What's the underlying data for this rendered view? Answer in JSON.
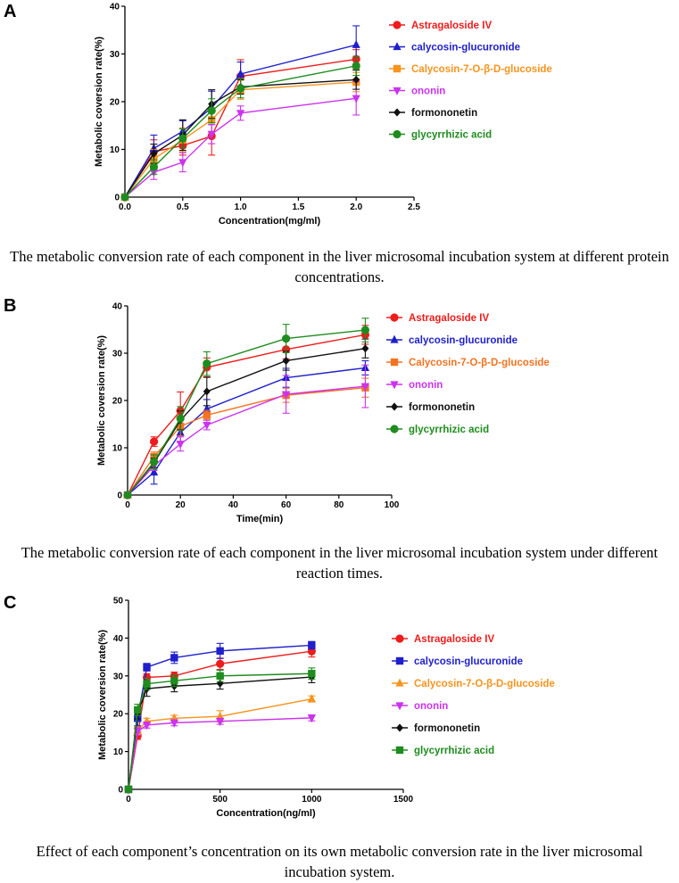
{
  "colors": {
    "red": "#ee1c1c",
    "blue": "#1f1fcc",
    "orange": "#f7941d",
    "magenta": "#cc33ee",
    "black": "#111111",
    "green": "#1e8c1e",
    "orange_b": "#f47321",
    "blue_c": "#1f1fcc"
  },
  "panels": [
    {
      "label": "A",
      "caption": "The metabolic conversion rate of each component in the liver microsomal incubation system at different protein concentrations.",
      "chart_data": {
        "type": "line",
        "title": "",
        "xlabel": "Concentration(mg/ml)",
        "ylabel": "Metabolic coversion rate(%)",
        "xlim": [
          0,
          2.5
        ],
        "ylim": [
          0,
          40
        ],
        "xticks": [
          0,
          0.5,
          1,
          1.5,
          2,
          2.5
        ],
        "xtick_labels": [
          "0.0",
          "0.5",
          "1.0",
          "1.5",
          "2.0",
          "2.5"
        ],
        "yticks": [
          0,
          10,
          20,
          30,
          40
        ],
        "ytick_labels": [
          "0",
          "10",
          "20",
          "30",
          "40"
        ],
        "x": [
          0,
          0.25,
          0.5,
          0.75,
          1,
          2
        ],
        "legend_position": "right",
        "series": [
          {
            "name": "Astragaloside IV",
            "marker": "circle",
            "color": "red",
            "values": [
              0,
              9.5,
              10.8,
              12.8,
              25.3,
              28.9
            ],
            "errors": [
              0,
              2.5,
              2.0,
              4.0,
              3.5,
              2.0
            ]
          },
          {
            "name": "calycosin-glucuronide",
            "marker": "triangle-up",
            "color": "blue",
            "values": [
              0,
              10.2,
              13.8,
              18.7,
              25.8,
              31.9
            ],
            "errors": [
              0,
              2.8,
              2.2,
              3.5,
              2.5,
              4.0
            ]
          },
          {
            "name": "Calycosin-7-O-β-D-glucoside",
            "marker": "square",
            "color": "orange",
            "values": [
              0,
              8.0,
              12.0,
              16.2,
              22.5,
              24.1
            ],
            "errors": [
              0,
              2.0,
              2.5,
              2.5,
              2.0,
              2.0
            ]
          },
          {
            "name": "ononin",
            "marker": "triangle-down",
            "color": "magenta",
            "values": [
              0,
              5.2,
              7.3,
              13.2,
              17.6,
              20.7
            ],
            "errors": [
              0,
              1.5,
              2.0,
              2.0,
              1.5,
              3.5
            ]
          },
          {
            "name": "formononetin",
            "marker": "diamond",
            "color": "black",
            "values": [
              0,
              9.1,
              13.0,
              19.5,
              23.1,
              24.6
            ],
            "errors": [
              0,
              2.0,
              3.2,
              3.0,
              1.5,
              2.0
            ]
          },
          {
            "name": "glycyrrhizic acid",
            "marker": "circle",
            "color": "green",
            "values": [
              0,
              6.3,
              12.3,
              18.1,
              22.8,
              27.5
            ],
            "errors": [
              0,
              1.5,
              2.0,
              2.5,
              2.0,
              2.0
            ]
          }
        ]
      }
    },
    {
      "label": "B",
      "caption": "The metabolic conversion rate of each component in the liver microsomal incubation system under different reaction times.",
      "chart_data": {
        "type": "line",
        "title": "",
        "xlabel": "Time(min)",
        "ylabel": "Metabolic coversion rate(%)",
        "xlim": [
          0,
          100
        ],
        "ylim": [
          0,
          40
        ],
        "xticks": [
          0,
          20,
          40,
          60,
          80,
          100
        ],
        "xtick_labels": [
          "0",
          "20",
          "40",
          "60",
          "80",
          "100"
        ],
        "yticks": [
          0,
          10,
          20,
          30,
          40
        ],
        "ytick_labels": [
          "0",
          "10",
          "20",
          "30",
          "40"
        ],
        "x": [
          0,
          10,
          20,
          30,
          60,
          90
        ],
        "legend_position": "right",
        "series": [
          {
            "name": "Astragaloside IV",
            "marker": "circle",
            "color": "red",
            "values": [
              0,
              11.3,
              17.8,
              27.0,
              30.8,
              33.9
            ],
            "errors": [
              0,
              1.0,
              4.0,
              2.0,
              2.0,
              2.0
            ]
          },
          {
            "name": "calycosin-glucuronide",
            "marker": "triangle-up",
            "color": "blue",
            "values": [
              0,
              4.8,
              13.2,
              18.2,
              24.8,
              26.9
            ],
            "errors": [
              0,
              2.5,
              2.0,
              2.0,
              2.0,
              1.5
            ]
          },
          {
            "name": "Calycosin-7-O-β-D-glucoside",
            "marker": "square",
            "color": "orange_b",
            "values": [
              0,
              8.1,
              14.5,
              16.9,
              21.1,
              22.7
            ],
            "errors": [
              0,
              1.0,
              2.0,
              1.0,
              1.5,
              2.0
            ]
          },
          {
            "name": "ononin",
            "marker": "triangle-down",
            "color": "magenta",
            "values": [
              0,
              6.2,
              10.8,
              14.8,
              21.3,
              23.0
            ],
            "errors": [
              0,
              1.0,
              1.5,
              1.0,
              4.0,
              4.5
            ]
          },
          {
            "name": "formononetin",
            "marker": "diamond",
            "color": "black",
            "values": [
              0,
              6.8,
              15.8,
              21.9,
              28.4,
              31.0
            ],
            "errors": [
              0,
              1.0,
              2.0,
              3.0,
              2.0,
              2.0
            ]
          },
          {
            "name": "glycyrrhizic acid",
            "marker": "circle",
            "color": "green",
            "values": [
              0,
              7.0,
              16.2,
              27.8,
              33.1,
              34.9
            ],
            "errors": [
              0,
              1.5,
              2.5,
              2.5,
              3.0,
              2.5
            ]
          }
        ]
      }
    },
    {
      "label": "C",
      "caption": "Effect of each component’s concentration on its own metabolic conversion rate in the liver microsomal incubation system.",
      "chart_data": {
        "type": "line",
        "title": "",
        "xlabel": "Concentration(ng/ml)",
        "ylabel": "Metabolic coversion rate(%)",
        "xlim": [
          0,
          1500
        ],
        "ylim": [
          0,
          50
        ],
        "xticks": [
          0,
          500,
          1000,
          1500
        ],
        "xtick_labels": [
          "0",
          "500",
          "1000",
          "1500"
        ],
        "yticks": [
          0,
          10,
          20,
          30,
          40,
          50
        ],
        "ytick_labels": [
          "0",
          "10",
          "20",
          "30",
          "40",
          "50"
        ],
        "x": [
          0,
          50,
          100,
          250,
          500,
          1000
        ],
        "legend_position": "right",
        "series": [
          {
            "name": "Astragaloside IV",
            "marker": "circle",
            "color": "red",
            "values": [
              0,
              14.2,
              29.6,
              30.0,
              33.2,
              36.5
            ],
            "errors": [
              0,
              1.0,
              1.0,
              1.0,
              1.5,
              1.5
            ]
          },
          {
            "name": "calycosin-glucuronide",
            "marker": "square",
            "color": "blue_c",
            "values": [
              0,
              18.8,
              32.3,
              34.8,
              36.6,
              38.1
            ],
            "errors": [
              0,
              2.0,
              1.0,
              1.5,
              2.0,
              1.0
            ]
          },
          {
            "name": "Calycosin-7-O-β-D-glucoside",
            "marker": "triangle-up",
            "color": "orange",
            "values": [
              0,
              15.5,
              18.0,
              18.8,
              19.3,
              23.9
            ],
            "errors": [
              0,
              1.0,
              0.8,
              0.8,
              1.5,
              0.8
            ]
          },
          {
            "name": "ononin",
            "marker": "triangle-down",
            "color": "magenta",
            "values": [
              0,
              15.3,
              17.0,
              17.6,
              18.0,
              18.9
            ],
            "errors": [
              0,
              1.0,
              0.8,
              0.8,
              0.8,
              0.8
            ]
          },
          {
            "name": "formononetin",
            "marker": "diamond",
            "color": "black",
            "values": [
              0,
              20.1,
              26.6,
              27.3,
              28.0,
              29.7
            ],
            "errors": [
              0,
              1.5,
              2.0,
              1.5,
              1.5,
              1.5
            ]
          },
          {
            "name": "glycyrrhizic acid",
            "marker": "square",
            "color": "green",
            "values": [
              0,
              21.0,
              27.9,
              28.7,
              30.0,
              30.6
            ],
            "errors": [
              0,
              1.5,
              1.5,
              1.5,
              1.5,
              1.5
            ]
          }
        ]
      }
    }
  ]
}
